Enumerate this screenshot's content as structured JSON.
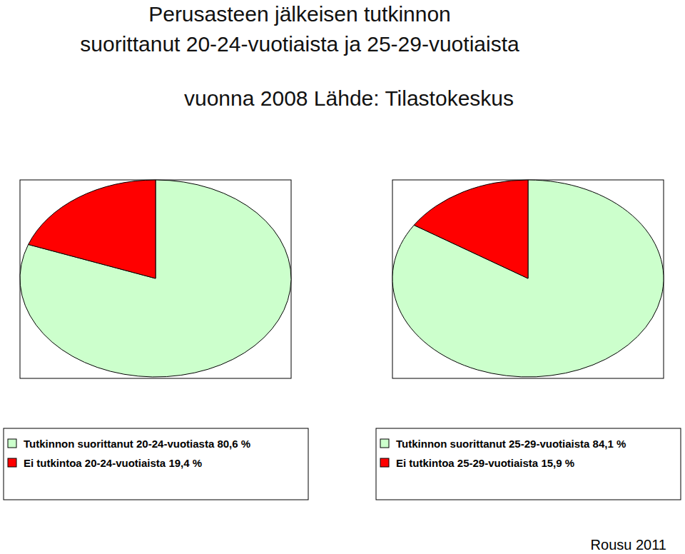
{
  "title": [
    "Perusasteen jälkeisen tutkinnon",
    "suorittanut 20-24-vuotiaista ja 25-29-vuotiaista"
  ],
  "subtitle": "vuonna 2008 Lähde: Tilastokeskus",
  "note": "Rousu 2011",
  "chart_data": [
    {
      "type": "pie",
      "categories": [
        "Tutkinnon suorittanut 20-24-vuotiasta",
        "Ei tutkintoa 20-24-vuotiaista"
      ],
      "values": [
        80.6,
        19.4
      ],
      "value_labels": [
        "80,6 %",
        "19,4 %"
      ],
      "colors": [
        "#ccffcc",
        "#ff0000"
      ],
      "legend": "bottom"
    },
    {
      "type": "pie",
      "categories": [
        "Tutkinnon suorittanut 25-29-vuotiaista",
        "Ei tutkintoa 25-29-vuotiaista"
      ],
      "values": [
        84.1,
        15.9
      ],
      "value_labels": [
        "84,1 %",
        "15,9 %"
      ],
      "colors": [
        "#ccffcc",
        "#ff0000"
      ],
      "legend": "bottom"
    }
  ]
}
